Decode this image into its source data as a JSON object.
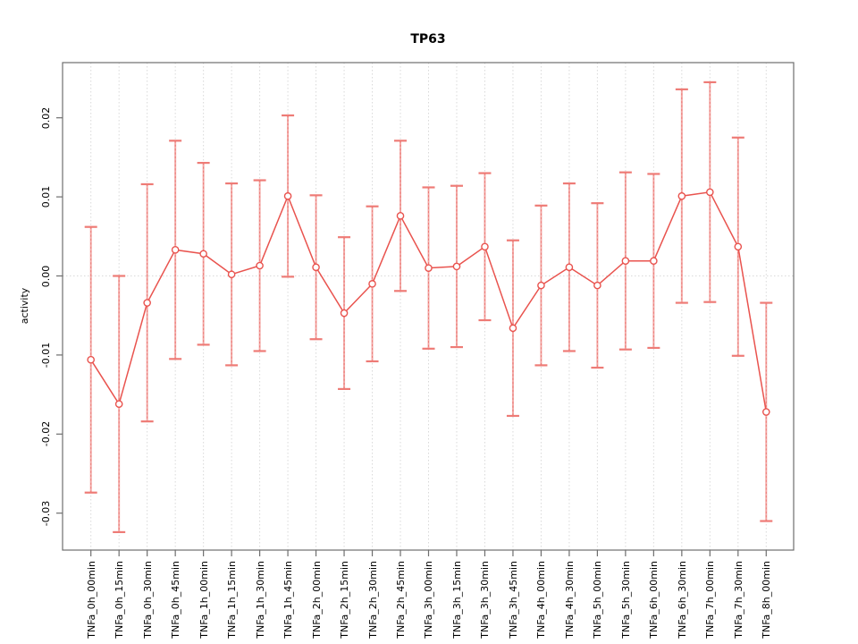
{
  "chart_data": {
    "type": "line",
    "title": "TP63",
    "xlabel": "",
    "ylabel": "activity",
    "legend": "none",
    "grid": "dotted vertical gridline at every category; dotted horizontal line at y=0",
    "ylim": [
      -0.0347,
      0.0268
    ],
    "yticks": [
      0.02,
      0.01,
      0.0,
      -0.01,
      -0.02,
      -0.03
    ],
    "ytick_labels": [
      "0.02",
      "0.01",
      "0.00",
      "-0.01",
      "-0.02",
      "-0.03"
    ],
    "categories": [
      "TNFa_0h_00min",
      "TNFa_0h_15min",
      "TNFa_0h_30min",
      "TNFa_0h_45min",
      "TNFa_1h_00min",
      "TNFa_1h_15min",
      "TNFa_1h_30min",
      "TNFa_1h_45min",
      "TNFa_2h_00min",
      "TNFa_2h_15min",
      "TNFa_2h_30min",
      "TNFa_2h_45min",
      "TNFa_3h_00min",
      "TNFa_3h_15min",
      "TNFa_3h_30min",
      "TNFa_3h_45min",
      "TNFa_4h_00min",
      "TNFa_4h_30min",
      "TNFa_5h_00min",
      "TNFa_5h_30min",
      "TNFa_6h_00min",
      "TNFa_6h_30min",
      "TNFa_7h_00min",
      "TNFa_7h_30min",
      "TNFa_8h_00min"
    ],
    "series": [
      {
        "name": "activity",
        "marker": "open-circle",
        "values": [
          -0.0106,
          -0.0162,
          -0.0034,
          0.0033,
          0.0028,
          0.0002,
          0.0013,
          0.0101,
          0.0011,
          -0.0047,
          -0.001,
          0.0076,
          0.001,
          0.0012,
          0.0037,
          -0.0066,
          -0.0012,
          0.0011,
          -0.0012,
          0.0019,
          0.0019,
          0.0101,
          0.0106,
          0.0037,
          -0.0172
        ],
        "errors": [
          0.0168,
          0.0162,
          0.015,
          0.0138,
          0.0115,
          0.0115,
          0.0108,
          0.0102,
          0.0091,
          0.0096,
          0.0098,
          0.0095,
          0.0102,
          0.0102,
          0.0093,
          0.0111,
          0.0101,
          0.0106,
          0.0104,
          0.0112,
          0.011,
          0.0135,
          0.0139,
          0.0138,
          0.0138
        ]
      }
    ],
    "colors": {
      "line": "#e9534e",
      "errorbar_stem": "#f29d9a",
      "errorbar_cap": "#ee7b76",
      "grid": "#d9d9d9",
      "axis": "#6e6e6e",
      "title": "#000000"
    }
  }
}
